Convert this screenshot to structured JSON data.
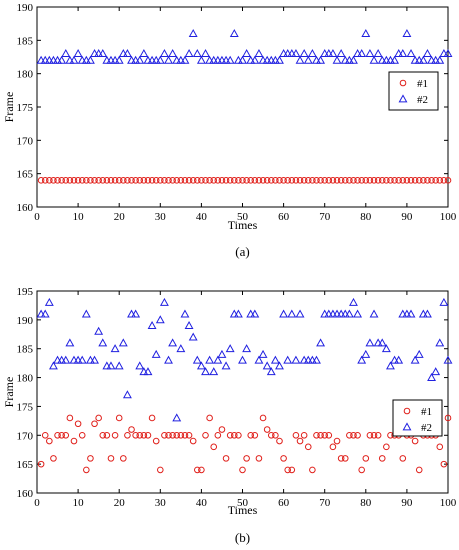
{
  "chart_data": [
    {
      "type": "scatter",
      "caption": "(a)",
      "xlabel": "Times",
      "ylabel": "Frame",
      "xlim": [
        0,
        100
      ],
      "ylim": [
        160,
        190
      ],
      "xticks": [
        0,
        10,
        20,
        30,
        40,
        50,
        60,
        70,
        80,
        90,
        100
      ],
      "yticks": [
        160,
        165,
        170,
        175,
        180,
        185,
        190
      ],
      "grid": false,
      "legend_position": "right",
      "series": [
        {
          "name": "#1",
          "marker": "circle",
          "color": "#e0201b",
          "x": [
            1,
            2,
            3,
            4,
            5,
            6,
            7,
            8,
            9,
            10,
            11,
            12,
            13,
            14,
            15,
            16,
            17,
            18,
            19,
            20,
            21,
            22,
            23,
            24,
            25,
            26,
            27,
            28,
            29,
            30,
            31,
            32,
            33,
            34,
            35,
            36,
            37,
            38,
            39,
            40,
            41,
            42,
            43,
            44,
            45,
            46,
            47,
            48,
            49,
            50,
            51,
            52,
            53,
            54,
            55,
            56,
            57,
            58,
            59,
            60,
            61,
            62,
            63,
            64,
            65,
            66,
            67,
            68,
            69,
            70,
            71,
            72,
            73,
            74,
            75,
            76,
            77,
            78,
            79,
            80,
            81,
            82,
            83,
            84,
            85,
            86,
            87,
            88,
            89,
            90,
            91,
            92,
            93,
            94,
            95,
            96,
            97,
            98,
            99,
            100
          ],
          "y": [
            164,
            164,
            164,
            164,
            164,
            164,
            164,
            164,
            164,
            164,
            164,
            164,
            164,
            164,
            164,
            164,
            164,
            164,
            164,
            164,
            164,
            164,
            164,
            164,
            164,
            164,
            164,
            164,
            164,
            164,
            164,
            164,
            164,
            164,
            164,
            164,
            164,
            164,
            164,
            164,
            164,
            164,
            164,
            164,
            164,
            164,
            164,
            164,
            164,
            164,
            164,
            164,
            164,
            164,
            164,
            164,
            164,
            164,
            164,
            164,
            164,
            164,
            164,
            164,
            164,
            164,
            164,
            164,
            164,
            164,
            164,
            164,
            164,
            164,
            164,
            164,
            164,
            164,
            164,
            164,
            164,
            164,
            164,
            164,
            164,
            164,
            164,
            164,
            164,
            164,
            164,
            164,
            164,
            164,
            164,
            164,
            164,
            164,
            164,
            164
          ]
        },
        {
          "name": "#2",
          "marker": "triangle",
          "color": "#2020e0",
          "x": [
            1,
            2,
            3,
            4,
            5,
            6,
            7,
            8,
            9,
            10,
            11,
            12,
            13,
            14,
            15,
            16,
            17,
            18,
            19,
            20,
            21,
            22,
            23,
            24,
            25,
            26,
            27,
            28,
            29,
            30,
            31,
            32,
            33,
            34,
            35,
            36,
            37,
            38,
            39,
            40,
            41,
            42,
            43,
            44,
            45,
            46,
            47,
            48,
            49,
            50,
            51,
            52,
            53,
            54,
            55,
            56,
            57,
            58,
            59,
            60,
            61,
            62,
            63,
            64,
            65,
            66,
            67,
            68,
            69,
            70,
            71,
            72,
            73,
            74,
            75,
            76,
            77,
            78,
            79,
            80,
            81,
            82,
            83,
            84,
            85,
            86,
            87,
            88,
            89,
            90,
            91,
            92,
            93,
            94,
            95,
            96,
            97,
            98,
            99,
            100
          ],
          "y": [
            182,
            182,
            182,
            182,
            182,
            182,
            183,
            182,
            182,
            183,
            182,
            182,
            182,
            183,
            183,
            183,
            182,
            182,
            182,
            182,
            183,
            183,
            182,
            182,
            182,
            183,
            182,
            182,
            182,
            182,
            183,
            182,
            183,
            182,
            182,
            182,
            183,
            186,
            183,
            182,
            183,
            182,
            182,
            182,
            182,
            182,
            182,
            186,
            182,
            182,
            183,
            182,
            182,
            183,
            182,
            182,
            182,
            182,
            182,
            183,
            183,
            183,
            183,
            182,
            183,
            182,
            183,
            182,
            182,
            183,
            183,
            183,
            182,
            183,
            182,
            182,
            182,
            183,
            183,
            186,
            183,
            182,
            183,
            182,
            182,
            182,
            182,
            183,
            183,
            186,
            183,
            182,
            182,
            182,
            183,
            182,
            182,
            182,
            183,
            183
          ]
        }
      ]
    },
    {
      "type": "scatter",
      "caption": "(b)",
      "xlabel": "Times",
      "ylabel": "Frame",
      "xlim": [
        0,
        100
      ],
      "ylim": [
        160,
        195
      ],
      "xticks": [
        0,
        10,
        20,
        30,
        40,
        50,
        60,
        70,
        80,
        90,
        100
      ],
      "yticks": [
        160,
        165,
        170,
        175,
        180,
        185,
        190,
        195
      ],
      "grid": false,
      "legend_position": "right",
      "series": [
        {
          "name": "#1",
          "marker": "circle",
          "color": "#e0201b",
          "x": [
            1,
            2,
            3,
            4,
            5,
            6,
            7,
            8,
            9,
            10,
            11,
            12,
            13,
            14,
            15,
            16,
            17,
            18,
            19,
            20,
            21,
            22,
            23,
            24,
            25,
            26,
            27,
            28,
            29,
            30,
            31,
            32,
            33,
            34,
            35,
            36,
            37,
            38,
            39,
            40,
            41,
            42,
            43,
            44,
            45,
            46,
            47,
            48,
            49,
            50,
            51,
            52,
            53,
            54,
            55,
            56,
            57,
            58,
            59,
            60,
            61,
            62,
            63,
            64,
            65,
            66,
            67,
            68,
            69,
            70,
            71,
            72,
            73,
            74,
            75,
            76,
            77,
            78,
            79,
            80,
            81,
            82,
            83,
            84,
            85,
            86,
            87,
            88,
            89,
            90,
            91,
            92,
            93,
            94,
            95,
            96,
            97,
            98,
            99,
            100
          ],
          "y": [
            165,
            170,
            169,
            166,
            170,
            170,
            170,
            173,
            169,
            172,
            170,
            164,
            166,
            172,
            173,
            170,
            170,
            166,
            170,
            173,
            166,
            170,
            171,
            170,
            170,
            170,
            170,
            173,
            169,
            164,
            170,
            170,
            170,
            170,
            170,
            170,
            170,
            169,
            164,
            164,
            170,
            173,
            168,
            170,
            171,
            166,
            170,
            170,
            170,
            164,
            166,
            170,
            170,
            166,
            173,
            171,
            170,
            170,
            169,
            166,
            164,
            164,
            170,
            169,
            170,
            168,
            164,
            170,
            170,
            170,
            170,
            168,
            169,
            166,
            166,
            170,
            170,
            170,
            164,
            166,
            170,
            170,
            170,
            166,
            168,
            170,
            170,
            170,
            166,
            170,
            170,
            169,
            164,
            170,
            170,
            170,
            170,
            168,
            165,
            173
          ]
        },
        {
          "name": "#2",
          "marker": "triangle",
          "color": "#2020e0",
          "x": [
            1,
            2,
            3,
            4,
            5,
            6,
            7,
            8,
            9,
            10,
            11,
            12,
            13,
            14,
            15,
            16,
            17,
            18,
            19,
            20,
            21,
            22,
            23,
            24,
            25,
            26,
            27,
            28,
            29,
            30,
            31,
            32,
            33,
            34,
            35,
            36,
            37,
            38,
            39,
            40,
            41,
            42,
            43,
            44,
            45,
            46,
            47,
            48,
            49,
            50,
            51,
            52,
            53,
            54,
            55,
            56,
            57,
            58,
            59,
            60,
            61,
            62,
            63,
            64,
            65,
            66,
            67,
            68,
            69,
            70,
            71,
            72,
            73,
            74,
            75,
            76,
            77,
            78,
            79,
            80,
            81,
            82,
            83,
            84,
            85,
            86,
            87,
            88,
            89,
            90,
            91,
            92,
            93,
            94,
            95,
            96,
            97,
            98,
            99,
            100
          ],
          "y": [
            191,
            191,
            193,
            182,
            183,
            183,
            183,
            186,
            183,
            183,
            183,
            191,
            183,
            183,
            188,
            186,
            182,
            182,
            185,
            182,
            186,
            177,
            191,
            191,
            182,
            181,
            181,
            189,
            184,
            190,
            193,
            183,
            186,
            173,
            185,
            191,
            189,
            187,
            183,
            182,
            181,
            183,
            181,
            183,
            184,
            182,
            185,
            191,
            191,
            183,
            185,
            191,
            191,
            183,
            184,
            182,
            181,
            183,
            182,
            191,
            183,
            191,
            183,
            191,
            183,
            183,
            183,
            183,
            186,
            191,
            191,
            191,
            191,
            191,
            191,
            191,
            193,
            191,
            183,
            184,
            186,
            191,
            186,
            186,
            185,
            182,
            183,
            183,
            191,
            191,
            191,
            183,
            184,
            191,
            191,
            180,
            181,
            186,
            193,
            183
          ]
        }
      ]
    }
  ]
}
